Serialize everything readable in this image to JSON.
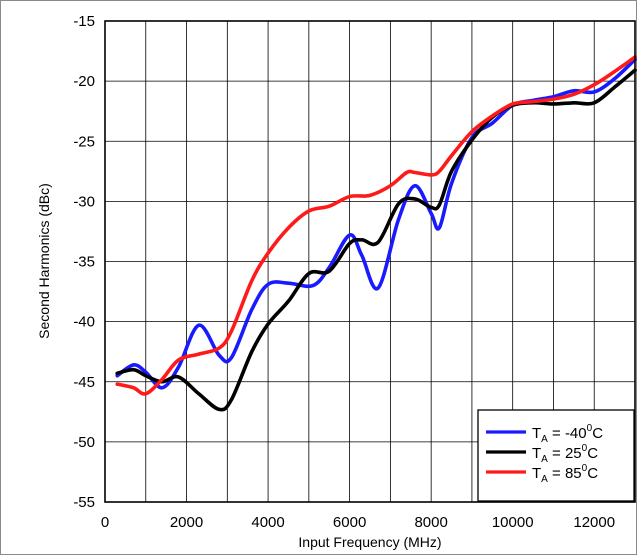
{
  "chart_data": {
    "type": "line",
    "title": "",
    "xlabel": "Input Frequency (MHz)",
    "ylabel": "Second Harmonics (dBc)",
    "xlim": [
      0,
      13000
    ],
    "ylim": [
      -55,
      -15
    ],
    "x_ticks": [
      0,
      2000,
      4000,
      6000,
      8000,
      10000,
      12000
    ],
    "y_ticks": [
      -15,
      -20,
      -25,
      -30,
      -35,
      -40,
      -45,
      -50,
      -55
    ],
    "x_gridlines": [
      0,
      1000,
      2000,
      3000,
      4000,
      5000,
      6000,
      7000,
      8000,
      9000,
      10000,
      11000,
      12000,
      13000
    ],
    "y_gridlines": [
      -15,
      -20,
      -25,
      -30,
      -35,
      -40,
      -45,
      -50,
      -55
    ],
    "grid": true,
    "legend_position": "bottom-right",
    "legend": [
      {
        "prefix": "T",
        "sub": "A",
        "mid": " = -40",
        "sup": "0",
        "suffix": "C",
        "color": "#1a1aff"
      },
      {
        "prefix": "T",
        "sub": "A",
        "mid": " = 25",
        "sup": "0",
        "suffix": "C",
        "color": "#000000"
      },
      {
        "prefix": "T",
        "sub": "A",
        "mid": " = 85",
        "sup": "0",
        "suffix": "C",
        "color": "#ff1a1a"
      }
    ],
    "series": [
      {
        "color": "#1a1aff",
        "x": [
          300,
          700,
          1000,
          1400,
          1800,
          2300,
          2800,
          3100,
          3600,
          4000,
          4500,
          5100,
          5500,
          6000,
          6300,
          6700,
          7200,
          7600,
          8000,
          8200,
          8500,
          9000,
          9500,
          10000,
          10500,
          11000,
          11500,
          12000,
          12500,
          13000
        ],
        "y": [
          -44.5,
          -43.6,
          -44.2,
          -45.5,
          -43.8,
          -40.3,
          -42.8,
          -43.0,
          -39.0,
          -36.9,
          -36.8,
          -37.0,
          -35.5,
          -32.8,
          -34.5,
          -37.2,
          -31.5,
          -28.7,
          -31.0,
          -32.2,
          -28.5,
          -24.7,
          -23.5,
          -22.0,
          -21.6,
          -21.3,
          -20.8,
          -20.9,
          -19.8,
          -18.2
        ]
      },
      {
        "color": "#000000",
        "x": [
          300,
          700,
          1000,
          1400,
          1800,
          2300,
          2800,
          3100,
          3600,
          4000,
          4500,
          5000,
          5500,
          6000,
          6300,
          6700,
          7200,
          7600,
          8000,
          8200,
          8500,
          9000,
          9500,
          10000,
          10500,
          11000,
          11500,
          12000,
          12500,
          13000
        ],
        "y": [
          -44.3,
          -44.0,
          -44.5,
          -45.0,
          -44.6,
          -46.0,
          -47.3,
          -46.5,
          -42.5,
          -40.2,
          -38.3,
          -36.0,
          -35.8,
          -33.5,
          -33.2,
          -33.4,
          -30.2,
          -29.8,
          -30.5,
          -30.3,
          -27.5,
          -24.9,
          -23.0,
          -22.0,
          -21.8,
          -21.9,
          -21.8,
          -21.8,
          -20.5,
          -19.1
        ]
      },
      {
        "color": "#ff1a1a",
        "x": [
          300,
          700,
          1000,
          1400,
          1800,
          2300,
          2800,
          3100,
          3600,
          4000,
          4500,
          5000,
          5500,
          6000,
          6500,
          7000,
          7400,
          7600,
          8000,
          8200,
          8500,
          9000,
          9500,
          10000,
          10500,
          11000,
          11500,
          12000,
          12500,
          13000
        ],
        "y": [
          -45.2,
          -45.5,
          -46.0,
          -44.8,
          -43.2,
          -42.7,
          -42.2,
          -40.8,
          -36.6,
          -34.3,
          -32.2,
          -30.8,
          -30.4,
          -29.6,
          -29.5,
          -28.7,
          -27.6,
          -27.6,
          -27.8,
          -27.5,
          -26.2,
          -24.2,
          -22.9,
          -21.9,
          -21.7,
          -21.5,
          -21.1,
          -20.3,
          -19.2,
          -18.0
        ]
      }
    ]
  }
}
